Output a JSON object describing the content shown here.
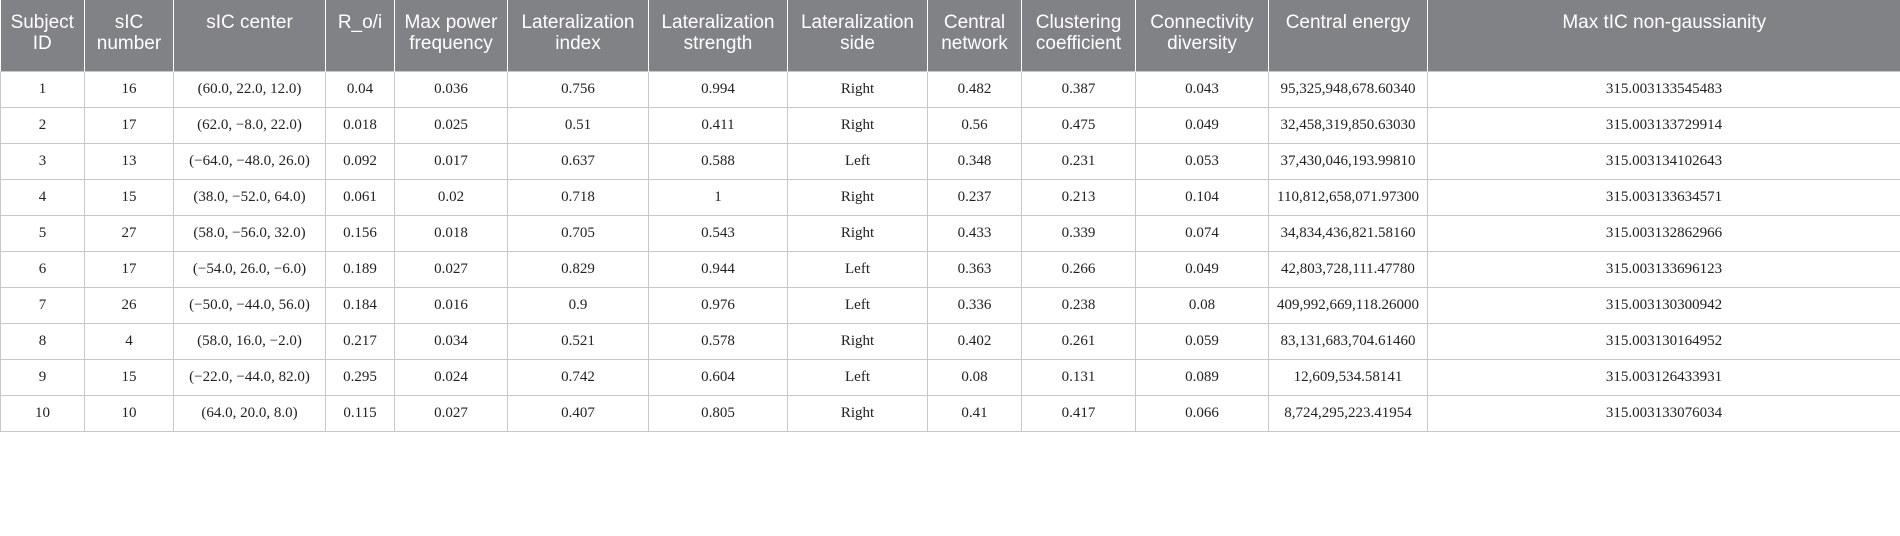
{
  "table": {
    "columns": [
      "Subject ID",
      "sIC number",
      "sIC center",
      "R_o/i",
      "Max power frequency",
      "Lateralization index",
      "Lateralization strength",
      "Lateralization side",
      "Central network",
      "Clustering coefficient",
      "Connectivity diversity",
      "Central energy",
      "Max tIC non-gaussianity"
    ],
    "rows": [
      [
        "1",
        "16",
        "(60.0, 22.0, 12.0)",
        "0.04",
        "0.036",
        "0.756",
        "0.994",
        "Right",
        "0.482",
        "0.387",
        "0.043",
        "95,325,948,678.60340",
        "315.003133545483"
      ],
      [
        "2",
        "17",
        "(62.0, −8.0, 22.0)",
        "0.018",
        "0.025",
        "0.51",
        "0.411",
        "Right",
        "0.56",
        "0.475",
        "0.049",
        "32,458,319,850.63030",
        "315.003133729914"
      ],
      [
        "3",
        "13",
        "(−64.0, −48.0, 26.0)",
        "0.092",
        "0.017",
        "0.637",
        "0.588",
        "Left",
        "0.348",
        "0.231",
        "0.053",
        "37,430,046,193.99810",
        "315.003134102643"
      ],
      [
        "4",
        "15",
        "(38.0, −52.0, 64.0)",
        "0.061",
        "0.02",
        "0.718",
        "1",
        "Right",
        "0.237",
        "0.213",
        "0.104",
        "110,812,658,071.97300",
        "315.003133634571"
      ],
      [
        "5",
        "27",
        "(58.0, −56.0, 32.0)",
        "0.156",
        "0.018",
        "0.705",
        "0.543",
        "Right",
        "0.433",
        "0.339",
        "0.074",
        "34,834,436,821.58160",
        "315.003132862966"
      ],
      [
        "6",
        "17",
        "(−54.0, 26.0, −6.0)",
        "0.189",
        "0.027",
        "0.829",
        "0.944",
        "Left",
        "0.363",
        "0.266",
        "0.049",
        "42,803,728,111.47780",
        "315.003133696123"
      ],
      [
        "7",
        "26",
        "(−50.0, −44.0, 56.0)",
        "0.184",
        "0.016",
        "0.9",
        "0.976",
        "Left",
        "0.336",
        "0.238",
        "0.08",
        "409,992,669,118.26000",
        "315.003130300942"
      ],
      [
        "8",
        "4",
        "(58.0, 16.0, −2.0)",
        "0.217",
        "0.034",
        "0.521",
        "0.578",
        "Right",
        "0.402",
        "0.261",
        "0.059",
        "83,131,683,704.61460",
        "315.003130164952"
      ],
      [
        "9",
        "15",
        "(−22.0, −44.0, 82.0)",
        "0.295",
        "0.024",
        "0.742",
        "0.604",
        "Left",
        "0.08",
        "0.131",
        "0.089",
        "12,609,534.58141",
        "315.003126433931"
      ],
      [
        "10",
        "10",
        "(64.0, 20.0, 8.0)",
        "0.115",
        "0.027",
        "0.407",
        "0.805",
        "Right",
        "0.41",
        "0.417",
        "0.066",
        "8,724,295,223.41954",
        "315.003133076034"
      ]
    ]
  }
}
